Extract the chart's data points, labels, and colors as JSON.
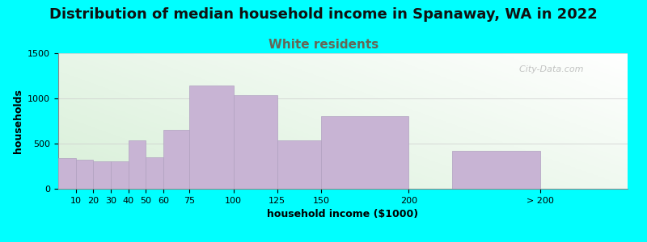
{
  "title": "Distribution of median household income in Spanaway, WA in 2022",
  "subtitle": "White residents",
  "xlabel": "household income ($1000)",
  "ylabel": "households",
  "background_color": "#00FFFF",
  "bar_color": "#c8b4d4",
  "bar_edge_color": "#b0a0c0",
  "categories": [
    "10",
    "20",
    "30",
    "40",
    "50",
    "60",
    "75",
    "100",
    "125",
    "150",
    "200",
    "> 200"
  ],
  "values": [
    335,
    320,
    300,
    300,
    535,
    345,
    650,
    1140,
    1040,
    540,
    800,
    420
  ],
  "bin_lefts": [
    0,
    10,
    20,
    30,
    40,
    50,
    60,
    75,
    100,
    125,
    150,
    225
  ],
  "bin_widths": [
    10,
    10,
    10,
    10,
    10,
    10,
    15,
    25,
    25,
    25,
    50,
    50
  ],
  "xtick_positions": [
    10,
    20,
    30,
    40,
    50,
    60,
    75,
    100,
    125,
    150,
    200,
    275
  ],
  "xtick_labels": [
    "10",
    "20",
    "30",
    "40",
    "50",
    "60",
    "75",
    "100",
    "125",
    "150",
    "200",
    "> 200"
  ],
  "ylim": [
    0,
    1500
  ],
  "yticks": [
    0,
    500,
    1000,
    1500
  ],
  "title_fontsize": 13,
  "subtitle_fontsize": 11,
  "subtitle_color": "#666655",
  "axis_label_fontsize": 9,
  "tick_fontsize": 8,
  "watermark": "  City-Data.com"
}
